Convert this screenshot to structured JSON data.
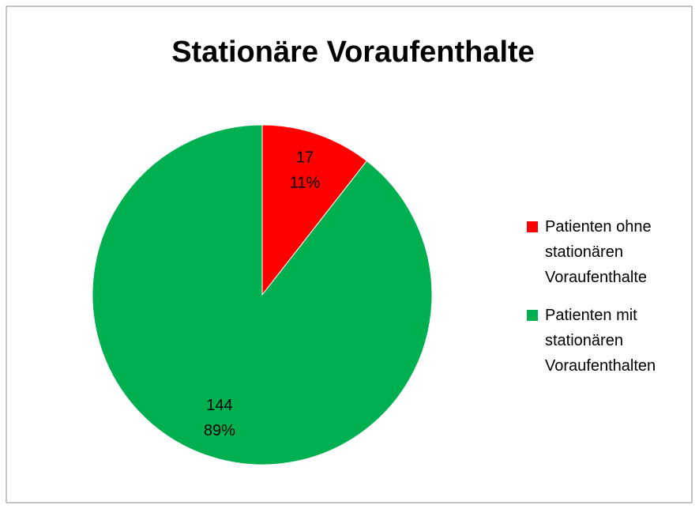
{
  "chart_data": {
    "type": "pie",
    "title": "Stationäre Voraufenthalte",
    "series": [
      {
        "name": "Patienten ohne stationären Voraufenthalte",
        "color": "#ff0000",
        "values": [
          17
        ]
      },
      {
        "name": "Patienten mit stationären Voraufenthalten",
        "color": "#00b050",
        "values": [
          144
        ]
      }
    ],
    "percent_labels": [
      "11%",
      "89%"
    ],
    "legend": "right"
  }
}
